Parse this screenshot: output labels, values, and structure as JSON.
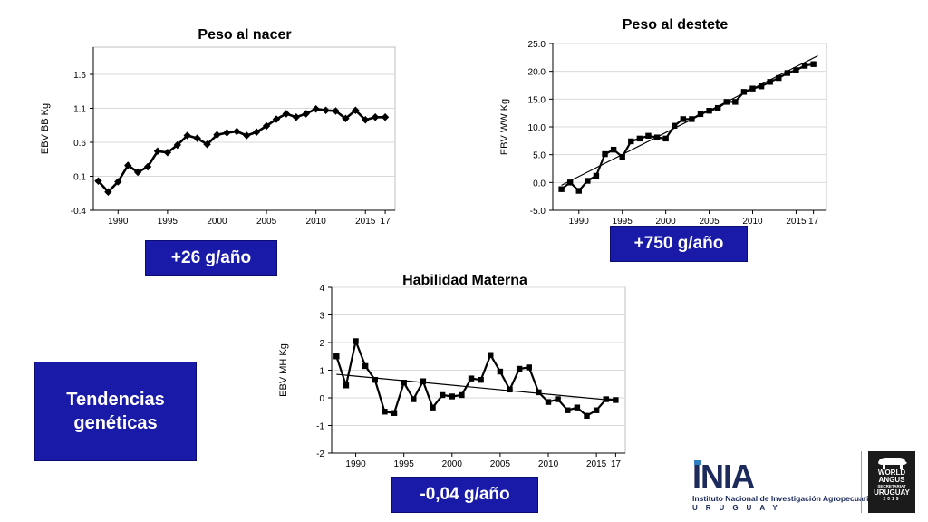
{
  "charts": {
    "bb": {
      "title": "Peso al nacer",
      "ylabel": "EBV BB Kg",
      "yticks": [
        "1.6",
        "1.1",
        "0.6",
        "0.1",
        "-0.4"
      ],
      "xticks": [
        "1990",
        "1995",
        "2000",
        "2005",
        "2010",
        "2015",
        "17"
      ]
    },
    "ww": {
      "title": "Peso al destete",
      "ylabel": "EBV WW Kg",
      "yticks": [
        "25.0",
        "20.0",
        "15.0",
        "10.0",
        "5.0",
        "0.0",
        "-5.0"
      ],
      "xticks": [
        "1990",
        "1995",
        "2000",
        "2005",
        "2010",
        "2015",
        "17"
      ]
    },
    "mh": {
      "title": "Habilidad Materna",
      "ylabel": "EBV MH Kg",
      "yticks": [
        "4",
        "3",
        "2",
        "1",
        "0",
        "-1",
        "-2"
      ],
      "xticks": [
        "1990",
        "1995",
        "2000",
        "2005",
        "2010",
        "2015",
        "17"
      ]
    }
  },
  "badges": {
    "bb": "+26 g/año",
    "ww": "+750 g/año",
    "mh": "-0,04 g/año"
  },
  "side_box": {
    "line1": "Tendencias",
    "line2": "genéticas"
  },
  "logos": {
    "inia_word": "INIA",
    "inia_name": "Instituto Nacional de Investigación Agropecuaria",
    "inia_country": "URUGUAY",
    "wa_line1": "WORLD",
    "wa_line2": "ANGUS",
    "wa_sub1": "SECRETARIAT",
    "wa_sub2": "URUGUAY",
    "wa_year": "2019"
  },
  "colors": {
    "badge_bg": "#1a1aa8",
    "line": "#000000",
    "grid": "#d9d9d9",
    "inia_blue": "#1c2a5c"
  },
  "chart_data": [
    {
      "type": "line",
      "title": "Peso al nacer",
      "ylabel": "EBV BB Kg",
      "xlabel": "",
      "marker": "diamond",
      "grid": true,
      "trendline": false,
      "ylim": [
        -0.4,
        2.0
      ],
      "xlim": [
        1987.5,
        2018
      ],
      "x": [
        1988,
        1989,
        1990,
        1991,
        1992,
        1993,
        1994,
        1995,
        1996,
        1997,
        1998,
        1999,
        2000,
        2001,
        2002,
        2003,
        2004,
        2005,
        2006,
        2007,
        2008,
        2009,
        2010,
        2011,
        2012,
        2013,
        2014,
        2015,
        2016,
        2017
      ],
      "y": [
        0.03,
        -0.13,
        0.02,
        0.26,
        0.16,
        0.24,
        0.47,
        0.45,
        0.56,
        0.7,
        0.66,
        0.57,
        0.71,
        0.74,
        0.76,
        0.7,
        0.75,
        0.84,
        0.94,
        1.02,
        0.97,
        1.02,
        1.09,
        1.07,
        1.06,
        0.95,
        1.07,
        0.93,
        0.97,
        0.97
      ]
    },
    {
      "type": "line",
      "title": "Peso al destete",
      "ylabel": "EBV WW Kg",
      "xlabel": "",
      "marker": "square",
      "grid": true,
      "trendline": true,
      "trend": {
        "x": [
          1988,
          2017.5
        ],
        "y": [
          -0.5,
          22.8
        ]
      },
      "ylim": [
        -5.0,
        25.0
      ],
      "xlim": [
        1987,
        2018.5
      ],
      "x": [
        1988,
        1989,
        1990,
        1991,
        1992,
        1993,
        1994,
        1995,
        1996,
        1997,
        1998,
        1999,
        2000,
        2001,
        2002,
        2003,
        2004,
        2005,
        2006,
        2007,
        2008,
        2009,
        2010,
        2011,
        2012,
        2013,
        2014,
        2015,
        2016,
        2017
      ],
      "y": [
        -1.2,
        0.0,
        -1.5,
        0.3,
        1.2,
        5.1,
        5.9,
        4.6,
        7.4,
        7.9,
        8.4,
        8.1,
        7.9,
        10.2,
        11.4,
        11.4,
        12.3,
        12.9,
        13.4,
        14.5,
        14.5,
        16.3,
        16.9,
        17.3,
        18.1,
        18.8,
        19.7,
        20.2,
        21.0,
        21.3
      ]
    },
    {
      "type": "line",
      "title": "Habilidad Materna",
      "ylabel": "EBV MH Kg",
      "xlabel": "",
      "marker": "square",
      "grid": true,
      "trendline": true,
      "trend": {
        "x": [
          1988,
          2017
        ],
        "y": [
          0.85,
          -0.1
        ]
      },
      "ylim": [
        -2,
        4
      ],
      "xlim": [
        1987.5,
        2018
      ],
      "x": [
        1988,
        1989,
        1990,
        1991,
        1992,
        1993,
        1994,
        1995,
        1996,
        1997,
        1998,
        1999,
        2000,
        2001,
        2002,
        2003,
        2004,
        2005,
        2006,
        2007,
        2008,
        2009,
        2010,
        2011,
        2012,
        2013,
        2014,
        2015,
        2016,
        2017
      ],
      "y": [
        1.5,
        0.45,
        2.05,
        1.15,
        0.65,
        -0.5,
        -0.55,
        0.55,
        -0.05,
        0.6,
        -0.35,
        0.1,
        0.05,
        0.1,
        0.7,
        0.65,
        1.55,
        0.95,
        0.3,
        1.05,
        1.1,
        0.2,
        -0.15,
        -0.05,
        -0.45,
        -0.35,
        -0.65,
        -0.45,
        -0.05,
        -0.08
      ]
    }
  ]
}
